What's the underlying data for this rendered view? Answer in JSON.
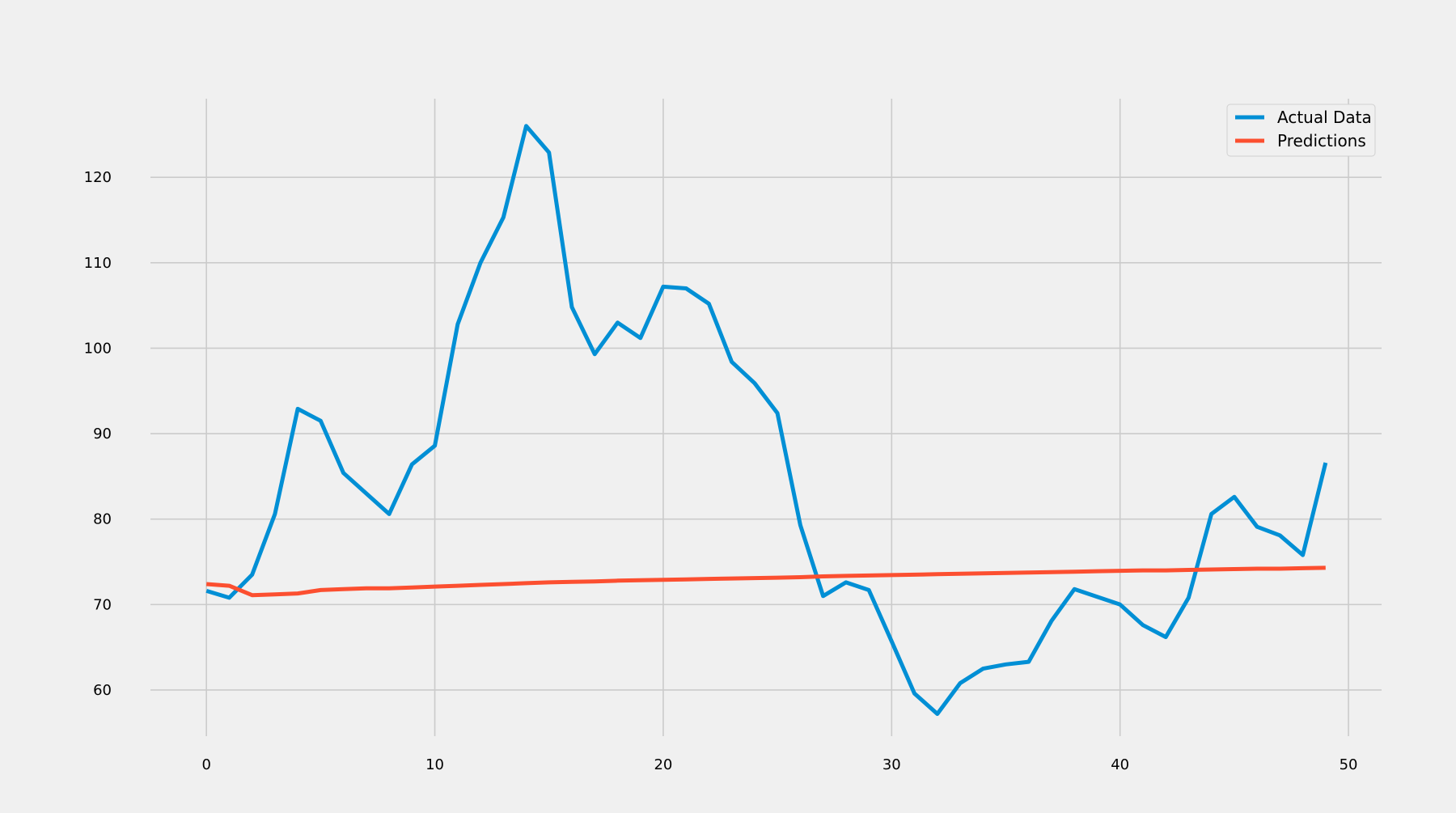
{
  "chart_data": {
    "type": "line",
    "title": "",
    "xlabel": "",
    "ylabel": "",
    "xlim": [
      -2.45,
      51.45
    ],
    "ylim": [
      54.6,
      129.2
    ],
    "x_ticks": [
      0,
      10,
      20,
      30,
      40,
      50
    ],
    "y_ticks": [
      60,
      70,
      80,
      90,
      100,
      110,
      120
    ],
    "grid": true,
    "legend_position": "top-right",
    "x": [
      0,
      1,
      2,
      3,
      4,
      5,
      6,
      7,
      8,
      9,
      10,
      11,
      12,
      13,
      14,
      15,
      16,
      17,
      18,
      19,
      20,
      21,
      22,
      23,
      24,
      25,
      26,
      27,
      28,
      29,
      30,
      31,
      32,
      33,
      34,
      35,
      36,
      37,
      38,
      39,
      40,
      41,
      42,
      43,
      44,
      45,
      46,
      47,
      48,
      49
    ],
    "series": [
      {
        "name": "Actual Data",
        "color": "#008fd5",
        "values": [
          71.6,
          70.8,
          73.5,
          80.6,
          92.9,
          91.5,
          85.4,
          83.0,
          80.6,
          86.4,
          88.6,
          102.8,
          110.0,
          115.3,
          126.0,
          122.9,
          104.8,
          99.3,
          103.0,
          101.2,
          107.2,
          107.0,
          105.2,
          98.4,
          95.9,
          92.4,
          79.3,
          71.0,
          72.6,
          71.7,
          65.7,
          59.6,
          57.2,
          60.8,
          62.5,
          63.0,
          63.3,
          68.1,
          71.8,
          70.9,
          70.0,
          67.6,
          66.2,
          70.8,
          80.6,
          82.6,
          79.1,
          78.1,
          75.8,
          86.6
        ]
      },
      {
        "name": "Predictions",
        "color": "#fc4f30",
        "values": [
          72.4,
          72.2,
          71.1,
          71.2,
          71.3,
          71.7,
          71.8,
          71.9,
          71.9,
          72.0,
          72.1,
          72.2,
          72.3,
          72.4,
          72.5,
          72.6,
          72.65,
          72.7,
          72.8,
          72.85,
          72.9,
          72.95,
          73.0,
          73.05,
          73.1,
          73.15,
          73.2,
          73.3,
          73.35,
          73.4,
          73.45,
          73.5,
          73.55,
          73.6,
          73.65,
          73.7,
          73.75,
          73.8,
          73.85,
          73.9,
          73.95,
          74.0,
          74.0,
          74.05,
          74.1,
          74.15,
          74.2,
          74.2,
          74.25,
          74.3
        ]
      }
    ]
  },
  "style": {
    "background": "#f0f0f0",
    "grid_color": "#cbcbcb"
  }
}
